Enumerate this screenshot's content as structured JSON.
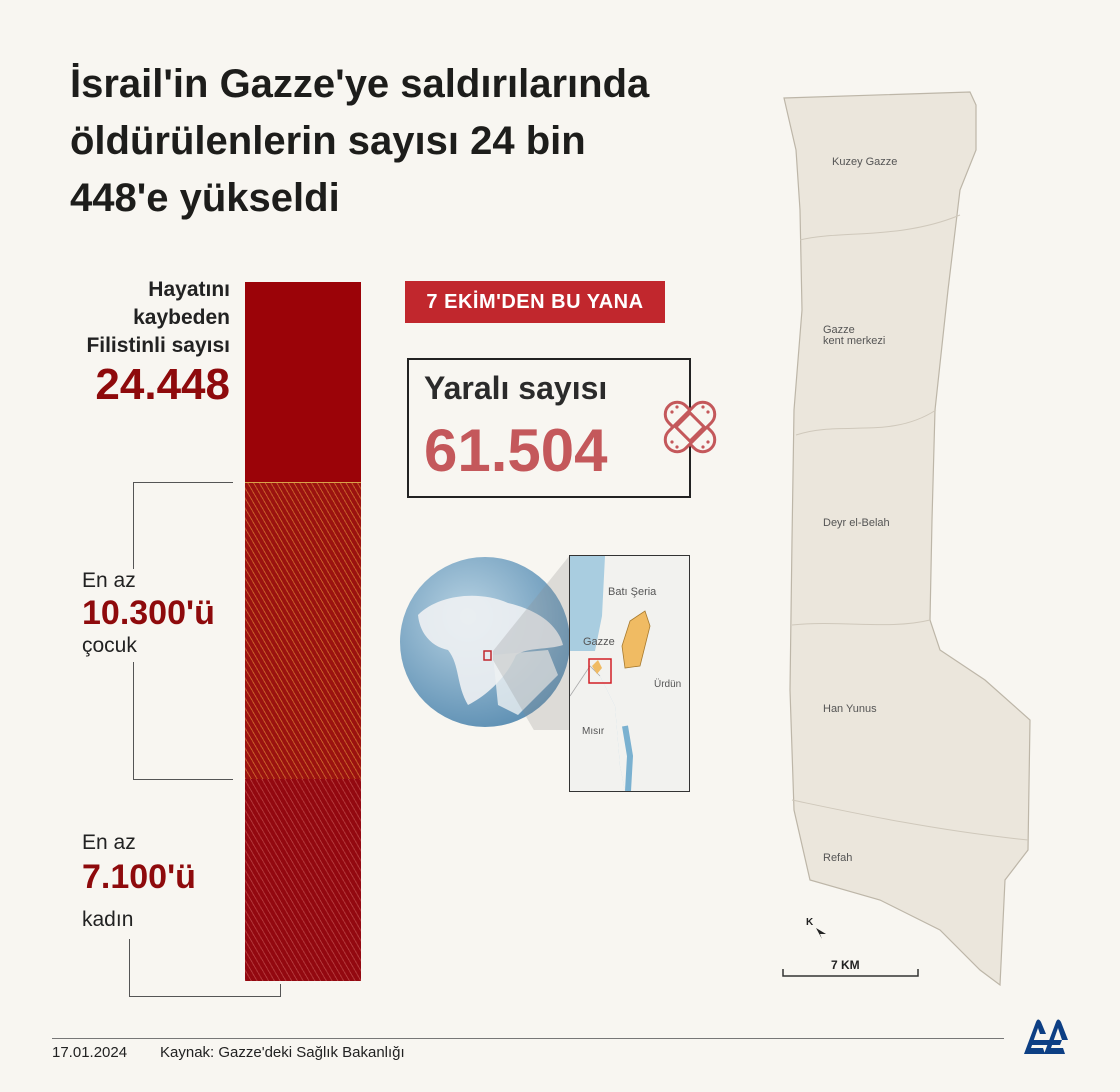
{
  "title": {
    "lines": [
      "İsrail'in Gazze'ye saldırılarında",
      "öldürülenlerin sayısı 24 bin",
      "448'e yükseldi"
    ]
  },
  "total": {
    "label_lines": [
      "Hayatını",
      "kaybeden",
      "Filistinli sayısı"
    ],
    "value": "24.448"
  },
  "children": {
    "prefix": "En az",
    "value": "10.300'ü",
    "suffix": "çocuk"
  },
  "women": {
    "prefix": "En az",
    "value": "7.100'ü",
    "suffix": "kadın"
  },
  "since_badge": "7 EKİM'DEN  BU YANA",
  "injured": {
    "label": "Yaralı sayısı",
    "value": "61.504"
  },
  "inset_map": {
    "labels": {
      "west_bank": "Batı Şeria",
      "gaza": "Gazze",
      "jordan": "Ürdün",
      "egypt": "Mısır"
    }
  },
  "gaza_map": {
    "regions": [
      "Kuzey Gazze",
      "Gazze",
      "kent merkezi",
      "Deyr el-Belah",
      "Han Yunus",
      "Refah"
    ],
    "scale_label": "7 KM",
    "north_label": "K"
  },
  "footer": {
    "date": "17.01.2024",
    "source": "Kaynak: Gazze'deki Sağlık Bakanlığı"
  },
  "colors": {
    "dark_red": "#9b0308",
    "accent_red": "#c1272d",
    "injured": "#c4585b",
    "map_fill": "#ebe6dc"
  }
}
